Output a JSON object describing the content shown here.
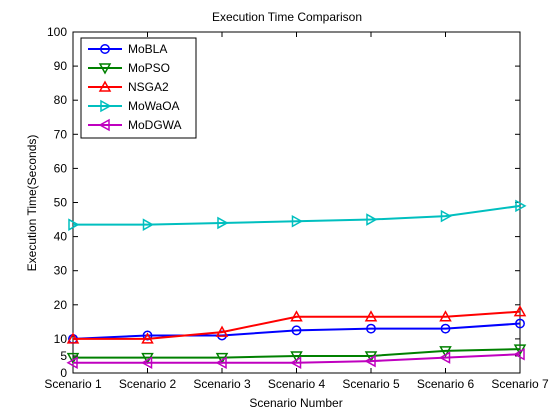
{
  "chart_data": {
    "type": "line",
    "title": "Execution Time Comparison",
    "xlabel": "Scenario Number",
    "ylabel": "Execution Time(Seconds)",
    "categories": [
      "Scenario 1",
      "Scenario 2",
      "Scenario 3",
      "Scenario 4",
      "Scenario 5",
      "Scenario 6",
      "Scenario 7"
    ],
    "ylim": [
      0,
      100
    ],
    "yticks": [
      0,
      5,
      10,
      20,
      30,
      40,
      50,
      60,
      70,
      80,
      90,
      100
    ],
    "grid": false,
    "legend_position": "top-left",
    "series": [
      {
        "name": "MoBLA",
        "color": "#0000ff",
        "marker": "circle",
        "values": [
          10,
          11,
          11,
          12.5,
          13,
          13,
          14.5
        ]
      },
      {
        "name": "MoPSO",
        "color": "#008000",
        "marker": "triangle-down",
        "values": [
          4.5,
          4.5,
          4.5,
          5,
          5,
          6.5,
          7
        ]
      },
      {
        "name": "NSGA2",
        "color": "#ff0000",
        "marker": "triangle-up",
        "values": [
          10,
          10,
          12,
          16.5,
          16.5,
          16.5,
          18
        ]
      },
      {
        "name": "MoWaOA",
        "color": "#00bfbf",
        "marker": "triangle-right",
        "values": [
          43.5,
          43.5,
          44,
          44.5,
          45,
          46,
          49
        ]
      },
      {
        "name": "MoDGWA",
        "color": "#bf00bf",
        "marker": "triangle-left",
        "values": [
          3,
          3,
          3,
          3,
          3.5,
          4.5,
          5.5
        ]
      }
    ]
  }
}
